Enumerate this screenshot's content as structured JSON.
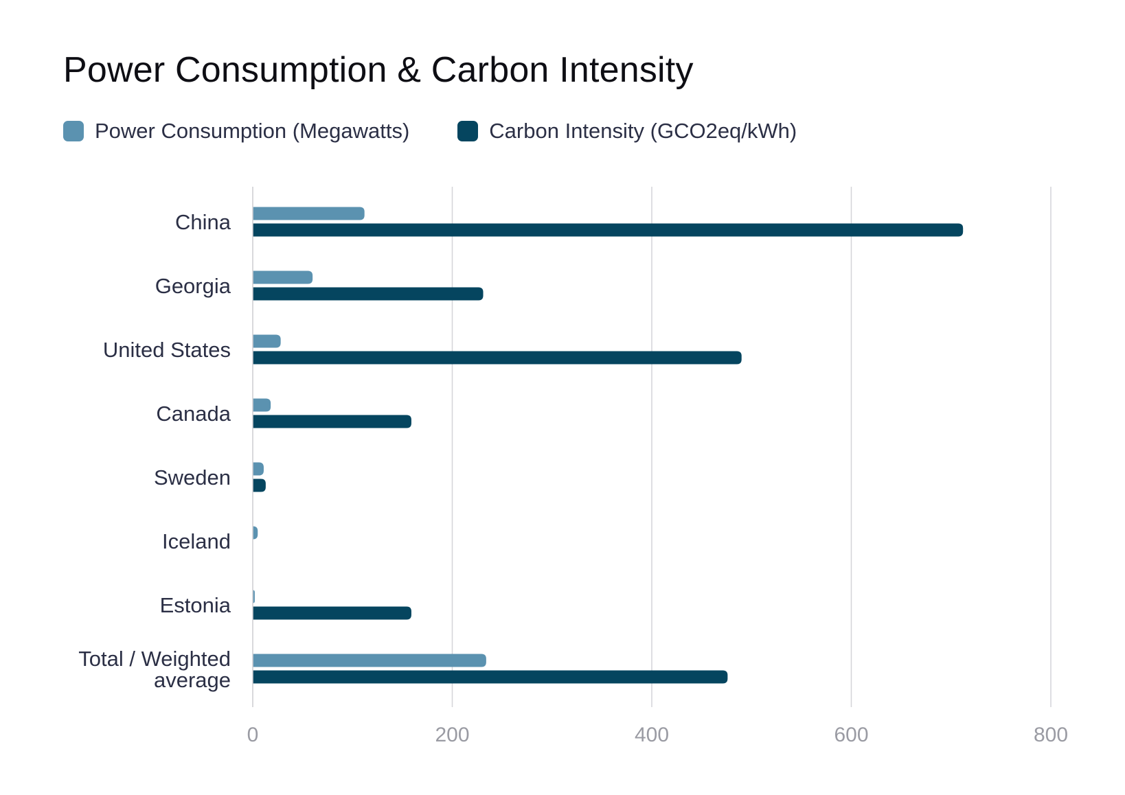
{
  "chart_data": {
    "type": "bar",
    "orientation": "horizontal",
    "title": "Power Consumption & Carbon Intensity",
    "categories": [
      "China",
      "Georgia",
      "United States",
      "Canada",
      "Sweden",
      "Iceland",
      "Estonia",
      "Total / Weighted average"
    ],
    "series": [
      {
        "name": "Power Consumption (Megawatts)",
        "color": "#5b92b0",
        "values": [
          112,
          60,
          28,
          18,
          11,
          5,
          2,
          234
        ]
      },
      {
        "name": "Carbon Intensity (GCO2eq/kWh)",
        "color": "#05455f",
        "values": [
          712,
          231,
          490,
          159,
          13,
          0,
          159,
          476
        ]
      }
    ],
    "xlim": [
      0,
      800
    ],
    "xticks": [
      0,
      200,
      400,
      600,
      800
    ],
    "grid": true,
    "legend_position": "top-left"
  }
}
